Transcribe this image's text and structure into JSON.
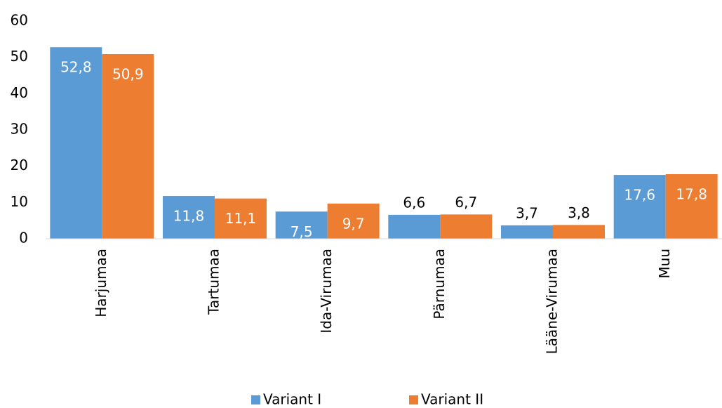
{
  "chart_data": {
    "type": "bar",
    "categories": [
      "Harjumaa",
      "Tartumaa",
      "Ida-Virumaa",
      "Pärnumaa",
      "Lääne-Virumaa",
      "Muu"
    ],
    "series": [
      {
        "name": "Variant I",
        "color": "#5b9bd5",
        "values": [
          52.8,
          11.8,
          7.5,
          6.6,
          3.7,
          17.6
        ],
        "value_labels": [
          "52,8",
          "11,8",
          "7,5",
          "6,6",
          "3,7",
          "17,6"
        ]
      },
      {
        "name": "Variant II",
        "color": "#ed7d31",
        "values": [
          50.9,
          11.1,
          9.7,
          6.7,
          3.8,
          17.8
        ],
        "value_labels": [
          "50,9",
          "11,1",
          "9,7",
          "6,7",
          "3,8",
          "17,8"
        ]
      }
    ],
    "ylim": [
      0,
      60
    ],
    "yticks": [
      0,
      10,
      20,
      30,
      40,
      50,
      60
    ],
    "grid": false,
    "legend": "bottom"
  }
}
